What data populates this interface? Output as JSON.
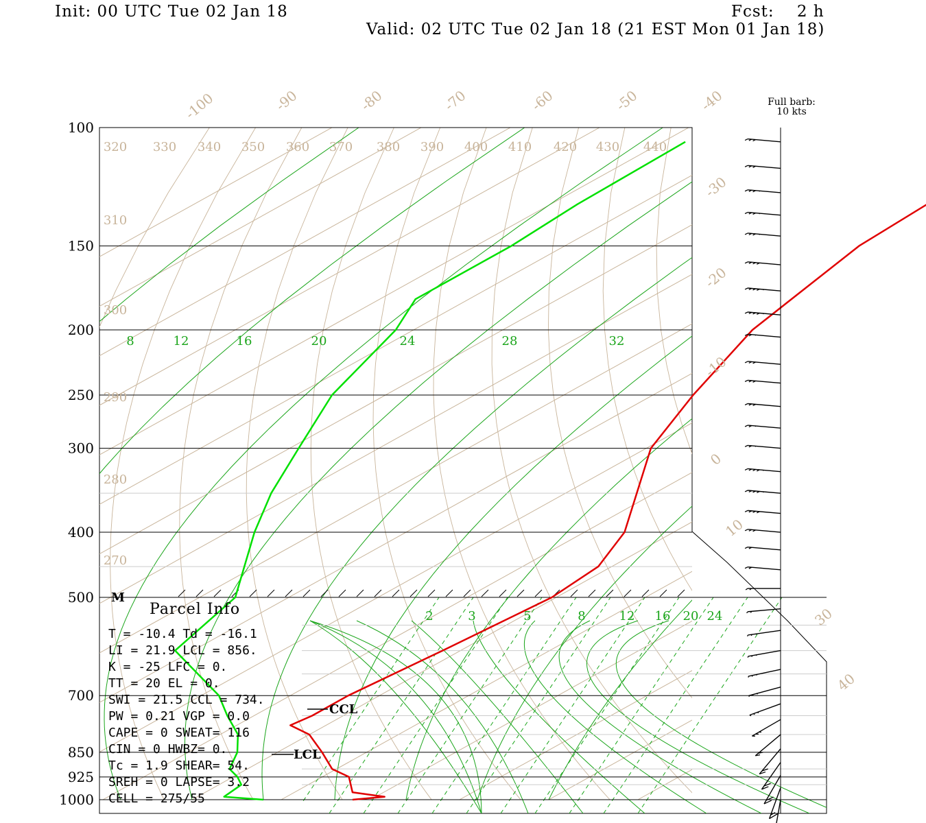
{
  "header": {
    "init": "Init: 00 UTC Tue 02 Jan 18",
    "fcst": "Fcst:    2 h",
    "valid": "Valid: 02 UTC Tue 02 Jan 18 (21 EST Mon 01 Jan 18)"
  },
  "barb_legend": {
    "line1": "Full barb:",
    "line2": "10 kts"
  },
  "colors": {
    "temperature": "#e00000",
    "dewpoint": "#00e000",
    "isotherm": "#c8b49a",
    "mixing_ratio": "#1aa51a",
    "isobar": "#000000"
  },
  "parcel": {
    "title": "Parcel Info",
    "marker": "M",
    "lines": [
      "T  =   -10.4 Td = -16.1",
      "LI =    21.9 LCL =  856.",
      "K  =     -25 LFC =   0.",
      "TT =      20 EL  =   0.",
      "SWI =   21.5 CCL =  734.",
      "PW =    0.21 VGP =   0.0",
      "CAPE =     0 SWEAT=  116",
      "CIN =      0 HWBZ=    0.",
      "Tc =     1.9 SHEAR=  54.",
      "SREH =     0 LAPSE=  3.2",
      "CELL = 275/55"
    ],
    "ccl_label": "CCL",
    "lcl_label": "LCL"
  },
  "chart_data": {
    "type": "skew-t log-p sounding",
    "y_axis": "pressure (hPa), log scale",
    "pressure_levels": [
      100,
      150,
      200,
      250,
      300,
      400,
      500,
      700,
      850,
      925,
      1000
    ],
    "pressure_labels": [
      "100",
      "150",
      "200",
      "250",
      "300",
      "400",
      "500",
      "700",
      "850",
      "925",
      "1000"
    ],
    "isotherm_labels": [
      "-100",
      "-90",
      "-80",
      "-70",
      "-60",
      "-50",
      "-40",
      "-30",
      "-20",
      "-10",
      "0",
      "10",
      "30",
      "40"
    ],
    "theta_labels": [
      "320",
      "330",
      "340",
      "350",
      "360",
      "370",
      "380",
      "390",
      "400",
      "410",
      "420",
      "430",
      "440",
      "310",
      "300",
      "290",
      "280",
      "270"
    ],
    "mixing_ratio_labels_upper": [
      "8",
      "12",
      "16",
      "20",
      "24",
      "28",
      "32"
    ],
    "mixing_ratio_labels_lower": [
      "2",
      "3",
      "5",
      "8",
      "12",
      "16",
      "20",
      "24"
    ],
    "series": [
      {
        "name": "temperature",
        "points": [
          [
            1000,
            8.0
          ],
          [
            990,
            11.0
          ],
          [
            975,
            6.5
          ],
          [
            925,
            3.0
          ],
          [
            900,
            -0.5
          ],
          [
            850,
            -5.0
          ],
          [
            800,
            -10.0
          ],
          [
            775,
            -14.0
          ],
          [
            750,
            -13.5
          ],
          [
            700,
            -13.5
          ],
          [
            600,
            -12.0
          ],
          [
            500,
            -10.5
          ],
          [
            450,
            -11.5
          ],
          [
            400,
            -15.5
          ],
          [
            350,
            -22.0
          ],
          [
            300,
            -29.5
          ],
          [
            250,
            -35.5
          ],
          [
            200,
            -42.0
          ],
          [
            150,
            -47.0
          ],
          [
            125,
            -48.0
          ],
          [
            105,
            -49.0
          ]
        ]
      },
      {
        "name": "dewpoint",
        "points": [
          [
            1000,
            -2.0
          ],
          [
            990,
            -7.0
          ],
          [
            950,
            -7.5
          ],
          [
            925,
            -9.5
          ],
          [
            900,
            -12.0
          ],
          [
            850,
            -14.5
          ],
          [
            800,
            -18.0
          ],
          [
            750,
            -23.0
          ],
          [
            700,
            -28.0
          ],
          [
            600,
            -42.0
          ],
          [
            500,
            -46.0
          ],
          [
            400,
            -57.0
          ],
          [
            350,
            -63.0
          ],
          [
            300,
            -69.0
          ],
          [
            250,
            -76.0
          ],
          [
            200,
            -82.0
          ],
          [
            180,
            -86.0
          ],
          [
            150,
            -86.0
          ],
          [
            130,
            -87.0
          ],
          [
            105,
            -87.5
          ]
        ]
      }
    ],
    "wind_barbs": [
      {
        "p": 105,
        "deg": 275,
        "kt": 30
      },
      {
        "p": 115,
        "deg": 275,
        "kt": 30
      },
      {
        "p": 125,
        "deg": 275,
        "kt": 35
      },
      {
        "p": 135,
        "deg": 275,
        "kt": 35
      },
      {
        "p": 145,
        "deg": 275,
        "kt": 35
      },
      {
        "p": 160,
        "deg": 275,
        "kt": 40
      },
      {
        "p": 175,
        "deg": 275,
        "kt": 45
      },
      {
        "p": 190,
        "deg": 275,
        "kt": 45
      },
      {
        "p": 205,
        "deg": 275,
        "kt": 25
      },
      {
        "p": 225,
        "deg": 275,
        "kt": 30
      },
      {
        "p": 240,
        "deg": 275,
        "kt": 30
      },
      {
        "p": 260,
        "deg": 275,
        "kt": 30
      },
      {
        "p": 280,
        "deg": 275,
        "kt": 25
      },
      {
        "p": 300,
        "deg": 275,
        "kt": 25
      },
      {
        "p": 325,
        "deg": 275,
        "kt": 45
      },
      {
        "p": 350,
        "deg": 275,
        "kt": 45
      },
      {
        "p": 375,
        "deg": 275,
        "kt": 40
      },
      {
        "p": 400,
        "deg": 275,
        "kt": 30
      },
      {
        "p": 425,
        "deg": 275,
        "kt": 20
      },
      {
        "p": 455,
        "deg": 275,
        "kt": 20
      },
      {
        "p": 485,
        "deg": 270,
        "kt": 20
      },
      {
        "p": 520,
        "deg": 265,
        "kt": 20
      },
      {
        "p": 560,
        "deg": 262,
        "kt": 25
      },
      {
        "p": 600,
        "deg": 260,
        "kt": 25
      },
      {
        "p": 640,
        "deg": 258,
        "kt": 25
      },
      {
        "p": 680,
        "deg": 255,
        "kt": 25
      },
      {
        "p": 720,
        "deg": 250,
        "kt": 25
      },
      {
        "p": 760,
        "deg": 240,
        "kt": 25
      },
      {
        "p": 800,
        "deg": 230,
        "kt": 20
      },
      {
        "p": 840,
        "deg": 220,
        "kt": 20
      },
      {
        "p": 880,
        "deg": 215,
        "kt": 20
      },
      {
        "p": 920,
        "deg": 210,
        "kt": 20
      },
      {
        "p": 960,
        "deg": 200,
        "kt": 15
      },
      {
        "p": 1000,
        "deg": 190,
        "kt": 10
      }
    ]
  }
}
